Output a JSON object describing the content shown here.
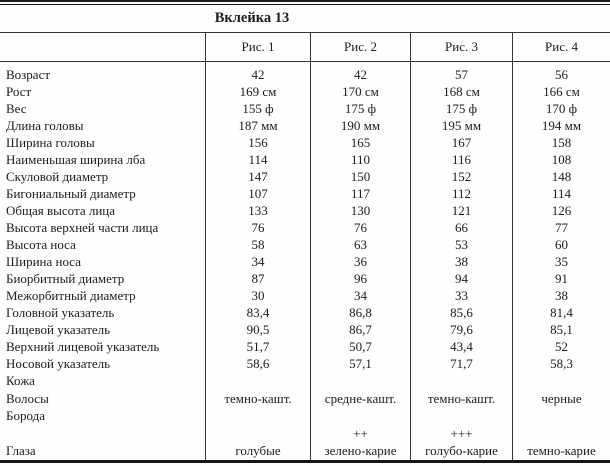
{
  "title": "Вклейка 13",
  "table": {
    "col_headers": [
      "Рис. 1",
      "Рис. 2",
      "Рис. 3",
      "Рис. 4"
    ],
    "rows": [
      {
        "label": "Возраст",
        "values": [
          "42",
          "42",
          "57",
          "56"
        ]
      },
      {
        "label": "Рост",
        "values": [
          "169 см",
          "170 см",
          "168 см",
          "166 см"
        ]
      },
      {
        "label": "Вес",
        "values": [
          "155 ф",
          "175 ф",
          "175 ф",
          "170 ф"
        ]
      },
      {
        "label": "Длина головы",
        "values": [
          "187 мм",
          "190 мм",
          "195 мм",
          "194 мм"
        ]
      },
      {
        "label": "Ширина головы",
        "values": [
          "156",
          "165",
          "167",
          "158"
        ]
      },
      {
        "label": "Наименьшая ширина лба",
        "values": [
          "114",
          "110",
          "116",
          "108"
        ]
      },
      {
        "label": "Скуловой диаметр",
        "values": [
          "147",
          "150",
          "152",
          "148"
        ]
      },
      {
        "label": "Бигониальный диаметр",
        "values": [
          "107",
          "117",
          "112",
          "114"
        ]
      },
      {
        "label": "Общая высота лица",
        "values": [
          "133",
          "130",
          "121",
          "126"
        ]
      },
      {
        "label": "Высота верхней части лица",
        "values": [
          "76",
          "76",
          "66",
          "77"
        ]
      },
      {
        "label": "Высота носа",
        "values": [
          "58",
          "63",
          "53",
          "60"
        ]
      },
      {
        "label": "Ширина носа",
        "values": [
          "34",
          "36",
          "38",
          "35"
        ]
      },
      {
        "label": "Биорбитный диаметр",
        "values": [
          "87",
          "96",
          "94",
          "91"
        ]
      },
      {
        "label": "Межорбитный диаметр",
        "values": [
          "30",
          "34",
          "33",
          "38"
        ]
      },
      {
        "label": "Головной указатель",
        "values": [
          "83,4",
          "86,8",
          "85,6",
          "81,4"
        ]
      },
      {
        "label": "Лицевой указатель",
        "values": [
          "90,5",
          "86,7",
          "79,6",
          "85,1"
        ]
      },
      {
        "label": "Верхний лицевой указатель",
        "values": [
          "51,7",
          "50,7",
          "43,4",
          "52"
        ]
      },
      {
        "label": "Носовой указатель",
        "values": [
          "58,6",
          "57,1",
          "71,7",
          "58,3"
        ]
      },
      {
        "label": "Кожа",
        "values": [
          "",
          "",
          "",
          ""
        ]
      },
      {
        "label": "Волосы",
        "values": [
          "темно-кашт.",
          "средне-кашт.",
          "темно-кашт.",
          "черные"
        ]
      },
      {
        "label": "Борода",
        "values": [
          "",
          "",
          "",
          ""
        ]
      },
      {
        "label": "",
        "values": [
          "",
          "++",
          "+++",
          ""
        ]
      },
      {
        "label": "Глаза",
        "values": [
          "голубые",
          "зелено-карие",
          "голубо-карие",
          "темно-карие"
        ]
      }
    ]
  }
}
